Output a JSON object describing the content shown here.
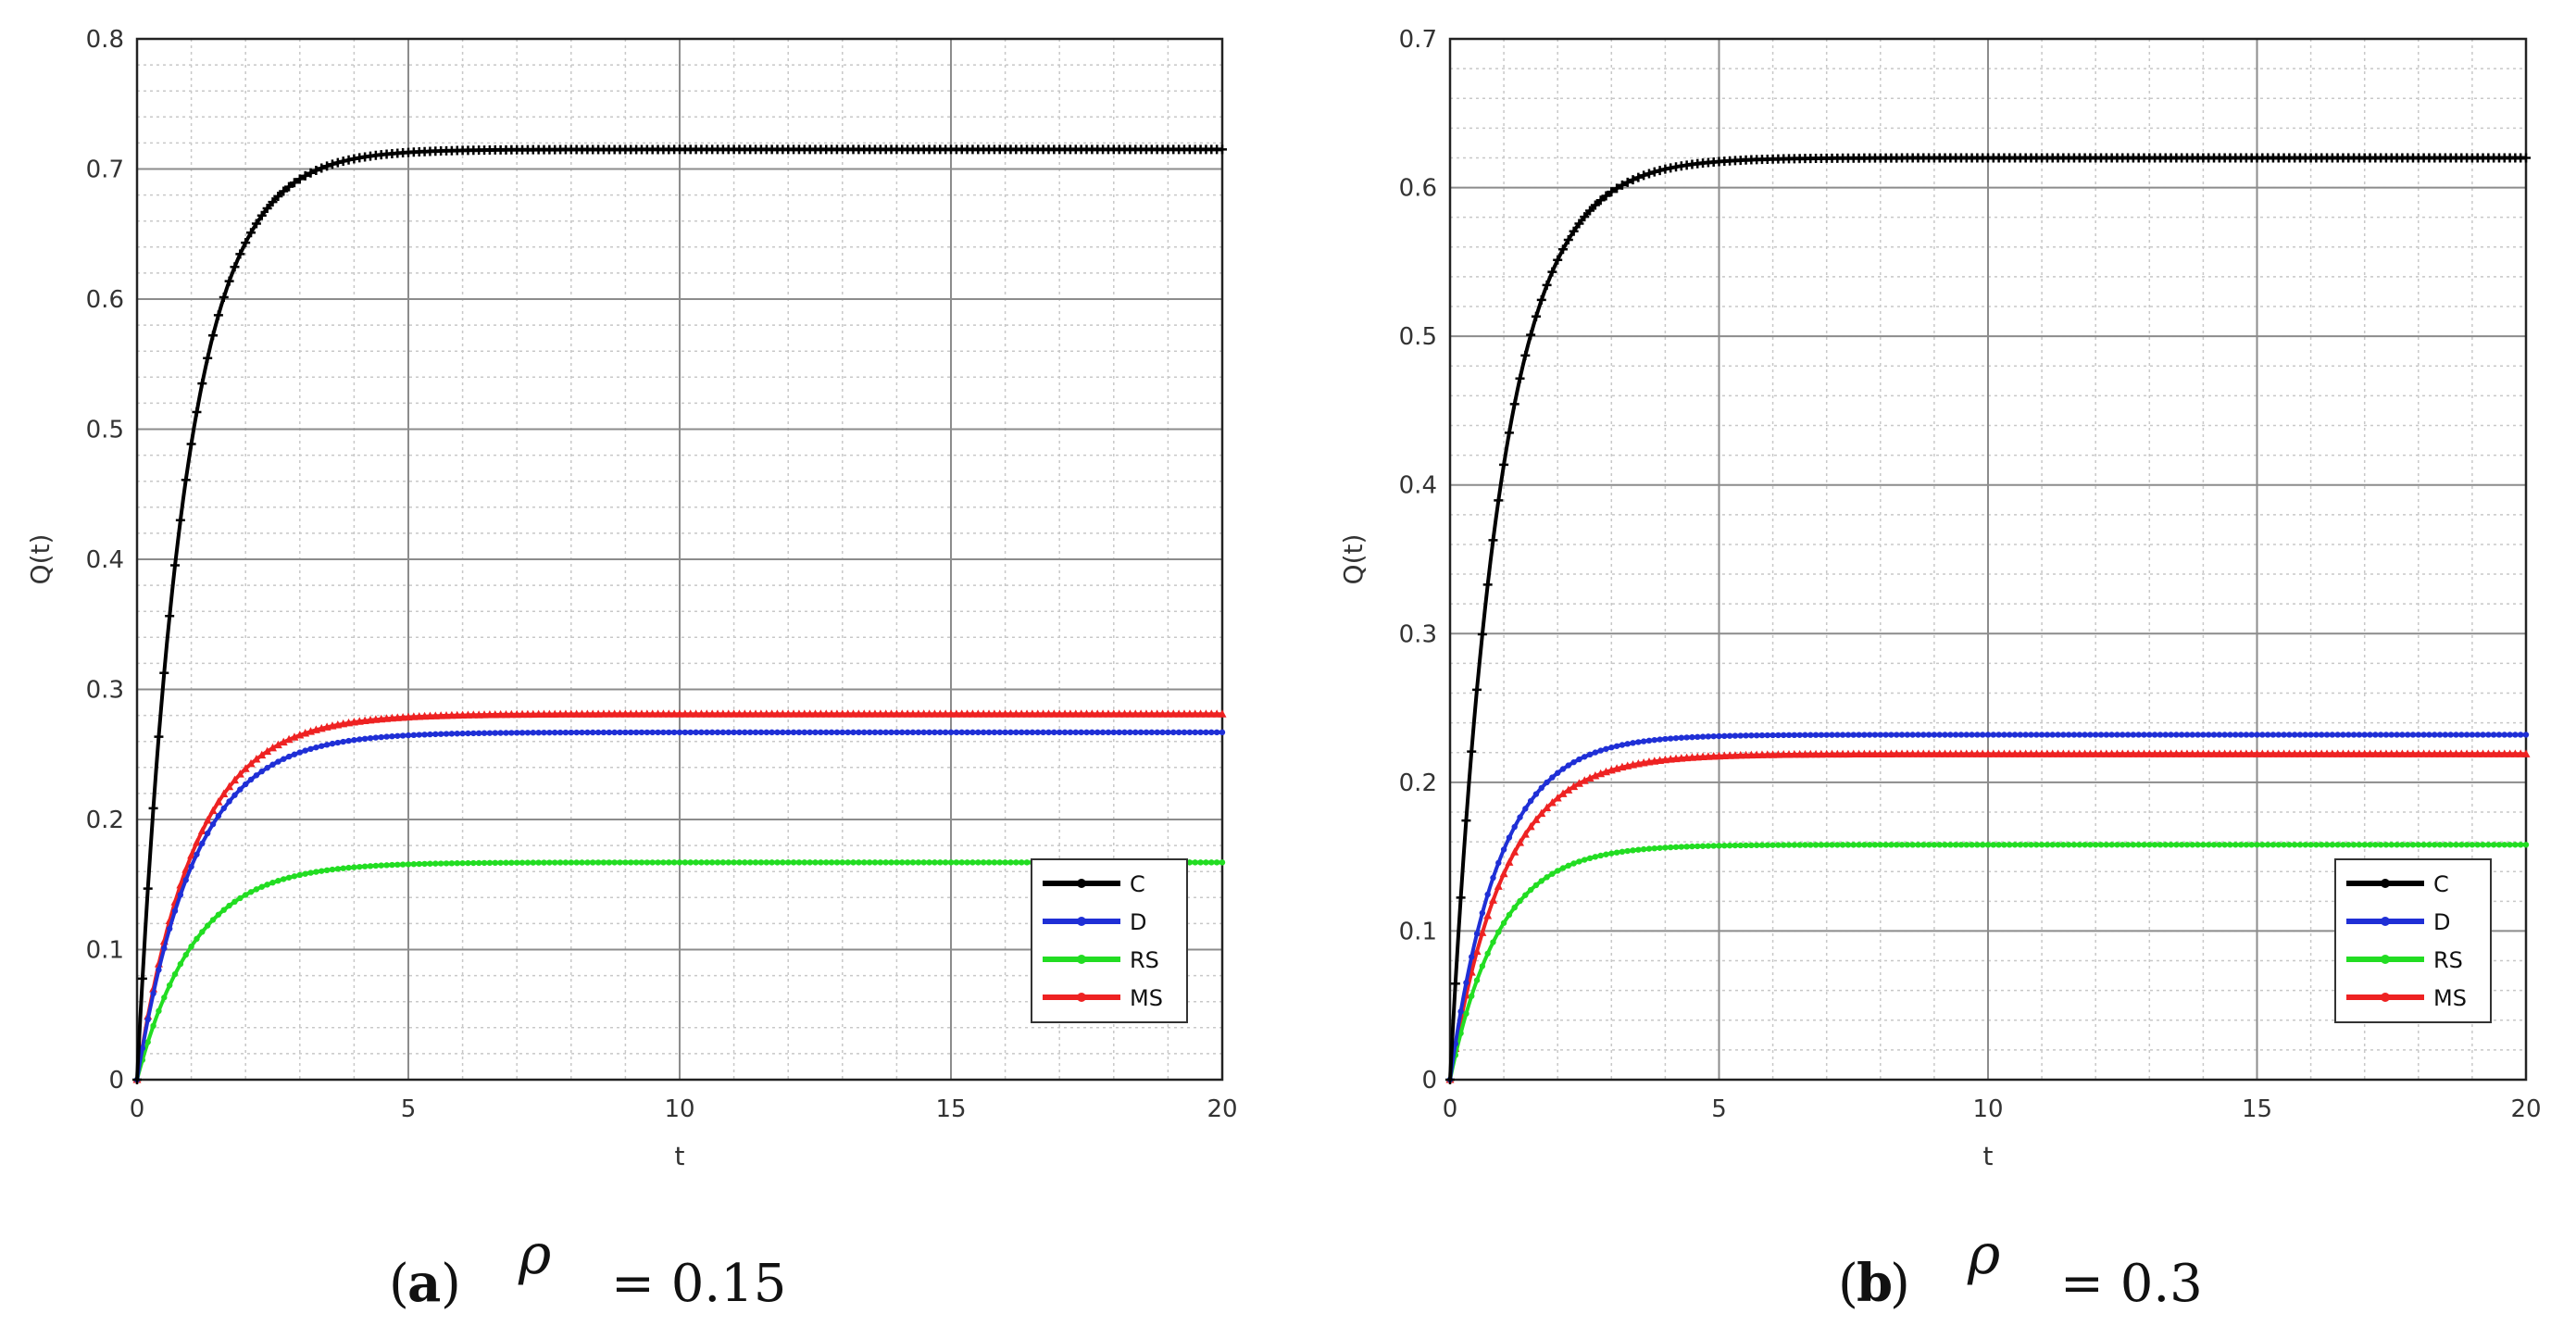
{
  "chart_data": [
    {
      "type": "line",
      "panel": "a",
      "xlabel": "t",
      "ylabel": "Q(t)",
      "xlim": [
        0,
        20
      ],
      "ylim": [
        0,
        0.8
      ],
      "x_ticks": [
        "0",
        "5",
        "10",
        "15",
        "20"
      ],
      "y_ticks": [
        "0",
        "0.1",
        "0.2",
        "0.3",
        "0.4",
        "0.5",
        "0.6",
        "0.7",
        "0.8"
      ],
      "grid": true,
      "legend_position": "bottom-right",
      "caption": {
        "letter": "a",
        "symbol": "ρ",
        "value": "= 0.15"
      },
      "series": [
        {
          "name": "C",
          "color": "#000000",
          "marker": "plus",
          "asymptote": 0.715,
          "rate": 1.15
        },
        {
          "name": "D",
          "color": "#1f2fd6",
          "marker": "dot",
          "asymptote": 0.267,
          "rate": 0.95
        },
        {
          "name": "RS",
          "color": "#22dd22",
          "marker": "dot",
          "asymptote": 0.167,
          "rate": 0.95
        },
        {
          "name": "MS",
          "color": "#ee2222",
          "marker": "triangle",
          "asymptote": 0.281,
          "rate": 0.95
        }
      ]
    },
    {
      "type": "line",
      "panel": "b",
      "xlabel": "t",
      "ylabel": "Q(t)",
      "xlim": [
        0,
        20
      ],
      "ylim": [
        0,
        0.7
      ],
      "x_ticks": [
        "0",
        "5",
        "10",
        "15",
        "20"
      ],
      "y_ticks": [
        "0",
        "0.1",
        "0.2",
        "0.3",
        "0.4",
        "0.5",
        "0.6",
        "0.7"
      ],
      "grid": true,
      "legend_position": "bottom-right",
      "caption": {
        "letter": "b",
        "symbol": "ρ",
        "value": "= 0.3"
      },
      "series": [
        {
          "name": "C",
          "color": "#000000",
          "marker": "plus",
          "asymptote": 0.62,
          "rate": 1.1
        },
        {
          "name": "D",
          "color": "#1f2fd6",
          "marker": "dot",
          "asymptote": 0.232,
          "rate": 1.1
        },
        {
          "name": "RS",
          "color": "#22dd22",
          "marker": "dot",
          "asymptote": 0.158,
          "rate": 1.1
        },
        {
          "name": "MS",
          "color": "#ee2222",
          "marker": "triangle",
          "asymptote": 0.219,
          "rate": 1.0
        }
      ]
    }
  ]
}
